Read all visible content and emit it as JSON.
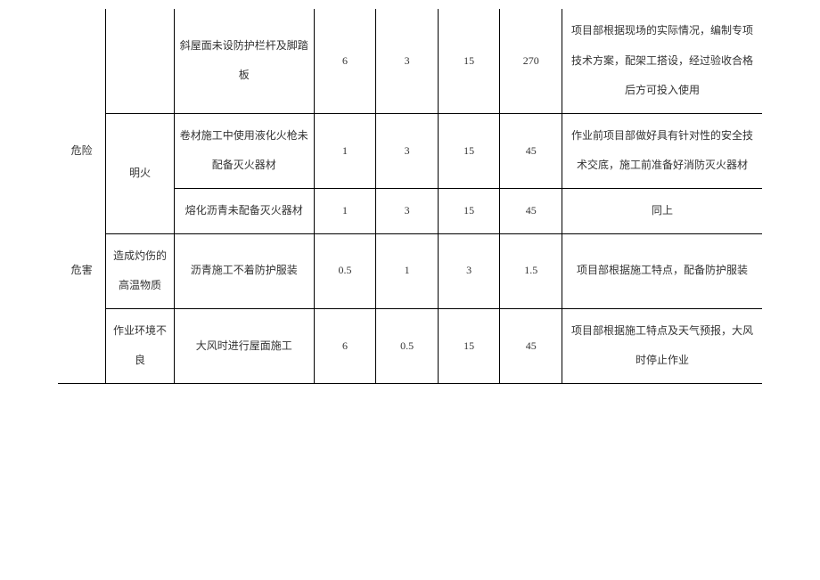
{
  "table": {
    "col1_labels": {
      "danger": "危险",
      "hazard": "危害"
    },
    "rows": [
      {
        "col2": "",
        "col3": "斜屋面未设防护栏杆及脚踏板",
        "col4": "6",
        "col5": "3",
        "col6": "15",
        "col7": "270",
        "col8": "项目部根据现场的实际情况，编制专项技术方案，配架工搭设，经过验收合格后方可投入使用"
      },
      {
        "col2": "明火",
        "col3": "卷材施工中使用液化火枪未配备灭火器材",
        "col4": "1",
        "col5": "3",
        "col6": "15",
        "col7": "45",
        "col8": "作业前项目部做好具有针对性的安全技术交底，施工前准备好消防灭火器材"
      },
      {
        "col2": "",
        "col3": "熔化沥青未配备灭火器材",
        "col4": "1",
        "col5": "3",
        "col6": "15",
        "col7": "45",
        "col8": "同上"
      },
      {
        "col2": "造成灼伤的高温物质",
        "col3": "沥青施工不着防护服装",
        "col4": "0.5",
        "col5": "1",
        "col6": "3",
        "col7": "1.5",
        "col8": "项目部根据施工特点，配备防护服装"
      },
      {
        "col2": "作业环境不良",
        "col3": "大风时进行屋面施工",
        "col4": "6",
        "col5": "0.5",
        "col6": "15",
        "col7": "45",
        "col8": "项目部根据施工特点及天气预报，大风时停止作业"
      }
    ]
  },
  "styling": {
    "font_family": "SimSun",
    "font_size": 12,
    "border_color": "#000000",
    "text_color": "#333333",
    "background_color": "#ffffff",
    "line_height": 2.8
  }
}
